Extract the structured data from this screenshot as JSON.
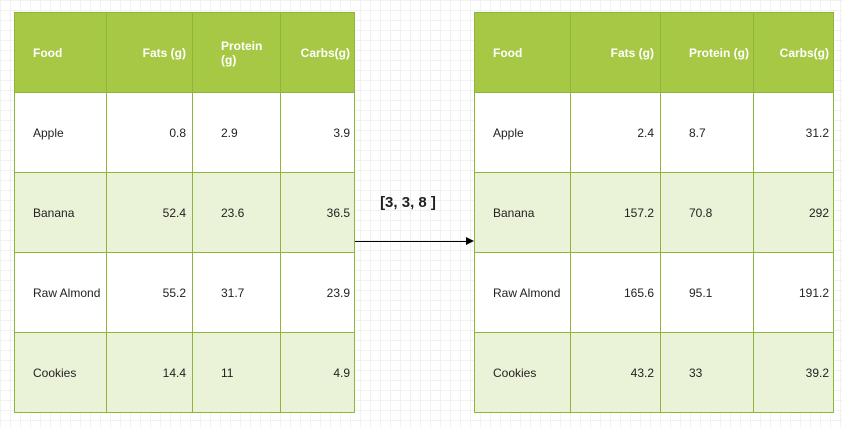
{
  "colors": {
    "header_bg": "#a7c844",
    "border": "#8db53b",
    "shaded_row": "#eaf2d7",
    "header_text": "#ffffff"
  },
  "left_table": {
    "headers": [
      "Food",
      "Fats (g)",
      "Protein (g)",
      "Carbs(g)"
    ],
    "rows": [
      [
        "Apple",
        "0.8",
        "2.9",
        "3.9"
      ],
      [
        "Banana",
        "52.4",
        "23.6",
        "36.5"
      ],
      [
        "Raw Almond",
        "55.2",
        "31.7",
        "23.9"
      ],
      [
        "Cookies",
        "14.4",
        "11",
        "4.9"
      ]
    ]
  },
  "operation_label": "[3, 3, 8 ]",
  "right_table": {
    "headers": [
      "Food",
      "Fats (g)",
      "Protein (g)",
      "Carbs(g)"
    ],
    "rows": [
      [
        "Apple",
        "2.4",
        "8.7",
        "31.2"
      ],
      [
        "Banana",
        "157.2",
        "70.8",
        "292"
      ],
      [
        "Raw Almond",
        "165.6",
        "95.1",
        "191.2"
      ],
      [
        "Cookies",
        "43.2",
        "33",
        "39.2"
      ]
    ]
  }
}
